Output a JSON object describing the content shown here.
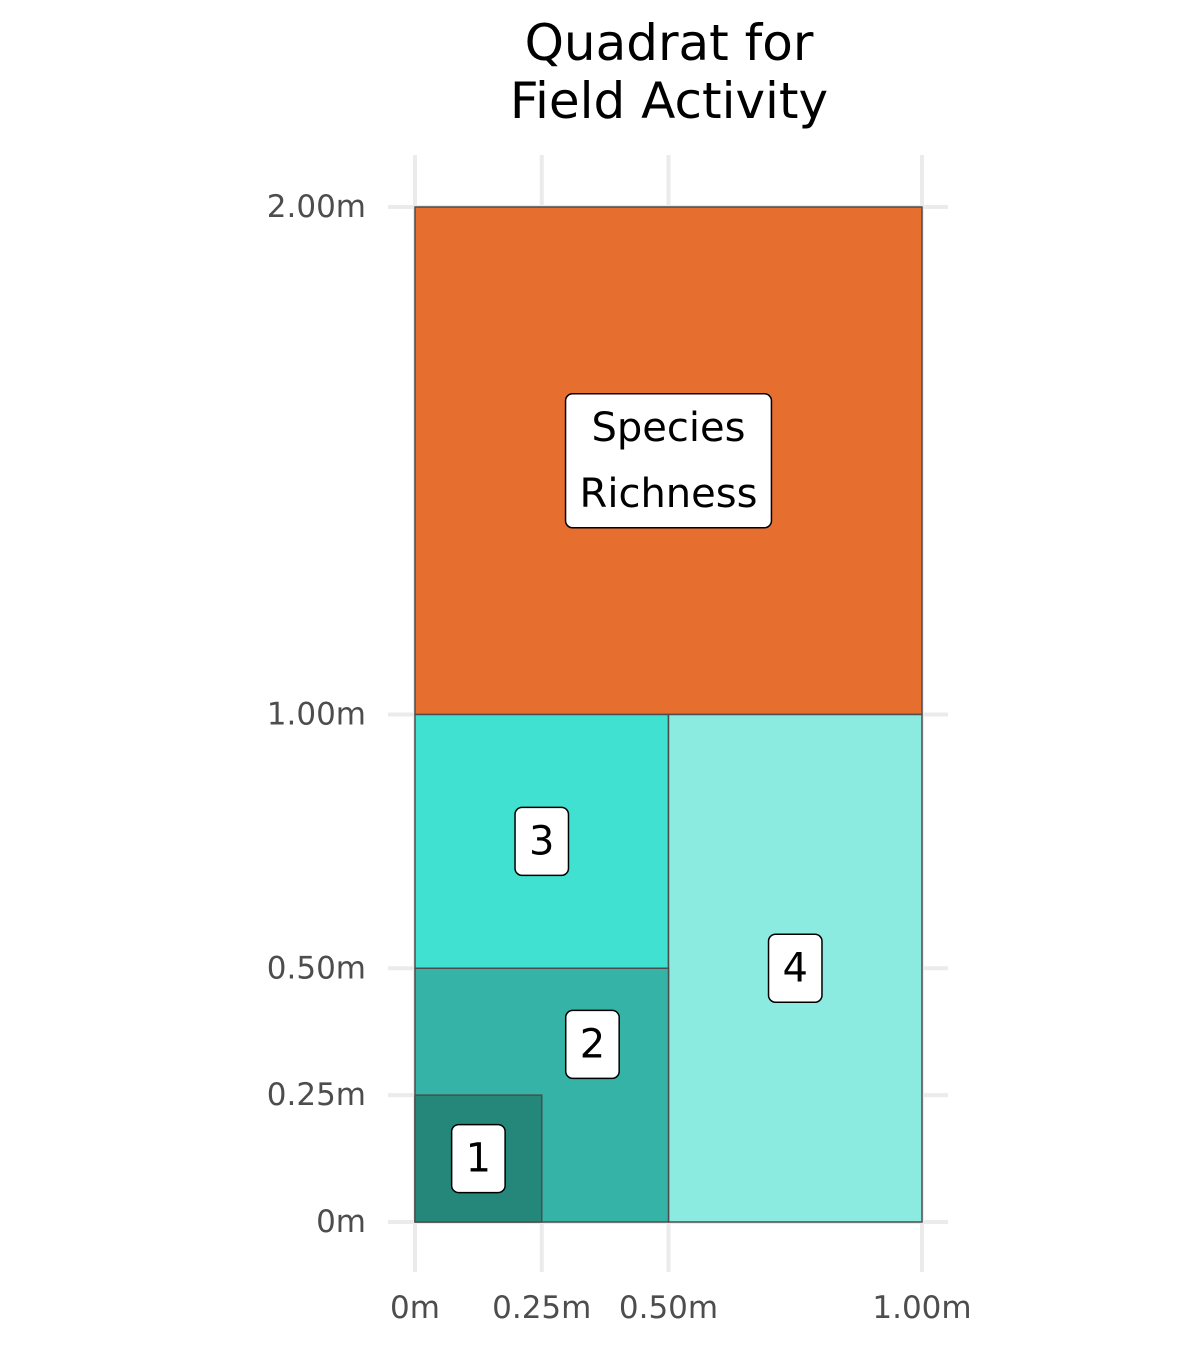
{
  "chart_data": {
    "type": "rect",
    "title": [
      "Quadrat for",
      "Field Activity"
    ],
    "xlabel": "",
    "ylabel": "",
    "xlim": [
      0,
      1
    ],
    "ylim": [
      0,
      2
    ],
    "x_ticks": [
      {
        "value": 0,
        "label": "0m"
      },
      {
        "value": 0.25,
        "label": "0.25m"
      },
      {
        "value": 0.5,
        "label": "0.50m"
      },
      {
        "value": 1,
        "label": "1.00m"
      }
    ],
    "y_ticks": [
      {
        "value": 0,
        "label": "0m"
      },
      {
        "value": 0.25,
        "label": "0.25m"
      },
      {
        "value": 0.5,
        "label": "0.50m"
      },
      {
        "value": 1,
        "label": "1.00m"
      },
      {
        "value": 2,
        "label": "2.00m"
      }
    ],
    "grid": true,
    "rectangles": [
      {
        "label": "Species Richness",
        "label_lines": [
          "Species",
          "Richness"
        ],
        "xmin": 0,
        "xmax": 1,
        "ymin": 1,
        "ymax": 2,
        "color": "#e66e2f",
        "label_x": 0.5,
        "label_y": 1.5
      },
      {
        "label": "3",
        "label_lines": [
          "3"
        ],
        "xmin": 0,
        "xmax": 0.5,
        "ymin": 0.5,
        "ymax": 1,
        "color": "#41e1d1",
        "label_x": 0.25,
        "label_y": 0.75
      },
      {
        "label": "4",
        "label_lines": [
          "4"
        ],
        "xmin": 0.5,
        "xmax": 1,
        "ymin": 0,
        "ymax": 1,
        "color": "#8cebe0",
        "label_x": 0.75,
        "label_y": 0.5
      },
      {
        "label": "2",
        "label_lines": [
          "2"
        ],
        "xmin": 0,
        "xmax": 0.5,
        "ymin": 0,
        "ymax": 0.5,
        "color": "#34b3a6",
        "label_x": 0.35,
        "label_y": 0.35
      },
      {
        "label": "1",
        "label_lines": [
          "1"
        ],
        "xmin": 0,
        "xmax": 0.25,
        "ymin": 0,
        "ymax": 0.25,
        "color": "#24877a",
        "label_x": 0.125,
        "label_y": 0.125
      }
    ]
  }
}
